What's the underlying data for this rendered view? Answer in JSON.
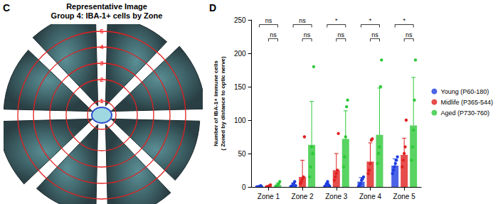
{
  "panel_c": {
    "panel_label": "C",
    "title": [
      "Representative Image",
      "Group 4: IBA-1+ cells by Zone"
    ],
    "zone_labels": [
      "1",
      "2",
      "3",
      "4",
      "5"
    ]
  },
  "chart_data": {
    "type": "bar",
    "title": "D",
    "y_label": [
      "Number of IBA-1+ immune cells",
      "( Zoned by distance to optic nerve)"
    ],
    "categories": [
      "Zone 1",
      "Zone 2",
      "Zone 3",
      "Zone 4",
      "Zone 5"
    ],
    "series": [
      {
        "name": "Young (P60-180)",
        "color": "#1f3de0",
        "values": [
          1,
          3,
          3,
          8,
          32
        ],
        "errors": [
          1,
          3,
          3,
          6,
          10
        ],
        "points": [
          [
            0,
            0,
            0,
            1,
            2,
            0
          ],
          [
            0,
            1,
            3,
            5,
            8,
            2
          ],
          [
            0,
            2,
            5,
            8,
            3,
            1
          ],
          [
            0,
            3,
            5,
            10,
            12,
            15
          ],
          [
            20,
            25,
            30,
            35,
            40,
            45
          ]
        ]
      },
      {
        "name": "Midlife (P365-544)",
        "color": "#e02020",
        "values": [
          1,
          15,
          25,
          38,
          48
        ],
        "errors": [
          1,
          25,
          25,
          28,
          25
        ],
        "points": [
          [
            0,
            0,
            1,
            2,
            3
          ],
          [
            5,
            8,
            12,
            15,
            75
          ],
          [
            10,
            15,
            20,
            25,
            80
          ],
          [
            20,
            25,
            35,
            70,
            72
          ],
          [
            30,
            40,
            50,
            60,
            100
          ]
        ]
      },
      {
        "name": "Aged (P730-760)",
        "color": "#2fc83a",
        "values": [
          3,
          63,
          72,
          78,
          92
        ],
        "errors": [
          3,
          65,
          42,
          70,
          72
        ],
        "points": [
          [
            0,
            2,
            3,
            5,
            8
          ],
          [
            15,
            30,
            60,
            50,
            180
          ],
          [
            30,
            45,
            75,
            120,
            130
          ],
          [
            35,
            50,
            60,
            150,
            190
          ],
          [
            40,
            60,
            85,
            130,
            190
          ]
        ]
      }
    ],
    "comparisons": [
      {
        "from": "Young (P60-180)",
        "to": "Aged (P730-760)",
        "labels": [
          "ns",
          "ns",
          "*",
          "*",
          "*"
        ]
      },
      {
        "from": "Midlife (P365-544)",
        "to": "Aged (P730-760)",
        "labels": [
          "ns",
          "ns",
          "ns",
          "ns",
          "ns"
        ]
      }
    ],
    "ylim": [
      0,
      250
    ],
    "yticks": [
      0,
      50,
      100,
      150,
      200,
      250
    ],
    "grid": false,
    "legend": "right",
    "marker": "circle"
  }
}
